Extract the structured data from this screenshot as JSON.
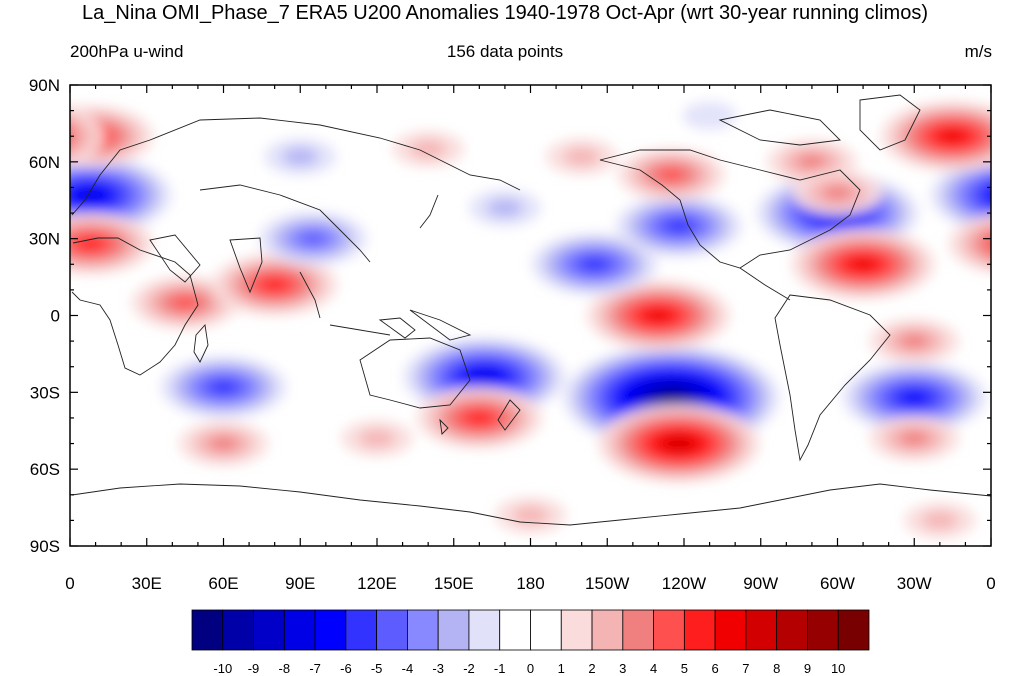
{
  "title": "La_Nina OMI_Phase_7 ERA5 U200 Anomalies 1940-1978 Oct-Apr (wrt 30-year running climos)",
  "subtitle_left": "200hPa u-wind",
  "subtitle_center": "156 data points",
  "subtitle_right": "m/s",
  "axes": {
    "lon_labels": [
      "0",
      "30E",
      "60E",
      "90E",
      "120E",
      "150E",
      "180",
      "150W",
      "120W",
      "90W",
      "60W",
      "30W",
      "0"
    ],
    "lat_labels": [
      "90N",
      "60N",
      "30N",
      "0",
      "30S",
      "60S",
      "90S"
    ]
  },
  "colorbar": {
    "labels": [
      "-10",
      "-9",
      "-8",
      "-7",
      "-6",
      "-5",
      "-4",
      "-3",
      "-2",
      "-1",
      "0",
      "1",
      "2",
      "3",
      "4",
      "5",
      "6",
      "7",
      "8",
      "9",
      "10"
    ],
    "colors": [
      "#000080",
      "#0000a8",
      "#0000c8",
      "#0000e6",
      "#0000ff",
      "#3333ff",
      "#5c5cff",
      "#8888ff",
      "#b4b4f5",
      "#e1e1fa",
      "#ffffff",
      "#ffffff",
      "#fadcdc",
      "#f5b4b4",
      "#f08080",
      "#ff5050",
      "#ff1e1e",
      "#f00000",
      "#d20000",
      "#b40000",
      "#960000",
      "#780000"
    ]
  },
  "map_data": {
    "type": "filled-contour",
    "variable": "U200 anomaly",
    "blobs": [
      {
        "lon": 8,
        "lat": 47,
        "value": -7
      },
      {
        "lon": 8,
        "lat": 28,
        "value": 5
      },
      {
        "lon": 8,
        "lat": 70,
        "value": 5
      },
      {
        "lon": 45,
        "lat": 5,
        "value": 4
      },
      {
        "lon": 80,
        "lat": 12,
        "value": 5
      },
      {
        "lon": 60,
        "lat": -28,
        "value": -5
      },
      {
        "lon": 95,
        "lat": 30,
        "value": -4
      },
      {
        "lon": 162,
        "lat": -24,
        "value": -7
      },
      {
        "lon": 235,
        "lat": -32,
        "value": -10
      },
      {
        "lon": 230,
        "lat": 0,
        "value": 6
      },
      {
        "lon": 205,
        "lat": 20,
        "value": -5
      },
      {
        "lon": 238,
        "lat": 35,
        "value": -5
      },
      {
        "lon": 300,
        "lat": 40,
        "value": -7
      },
      {
        "lon": 310,
        "lat": 20,
        "value": 6
      },
      {
        "lon": 238,
        "lat": -50,
        "value": 7
      },
      {
        "lon": 160,
        "lat": -40,
        "value": 5
      },
      {
        "lon": 330,
        "lat": -32,
        "value": -6
      },
      {
        "lon": 330,
        "lat": -48,
        "value": 3
      },
      {
        "lon": 345,
        "lat": 70,
        "value": 6
      },
      {
        "lon": 235,
        "lat": 55,
        "value": 4
      },
      {
        "lon": 290,
        "lat": 60,
        "value": 3
      },
      {
        "lon": 300,
        "lat": 48,
        "value": 3
      },
      {
        "lon": 120,
        "lat": -48,
        "value": 2
      },
      {
        "lon": 60,
        "lat": -50,
        "value": 3
      },
      {
        "lon": 90,
        "lat": 62,
        "value": -2
      },
      {
        "lon": 170,
        "lat": 42,
        "value": -2
      },
      {
        "lon": 250,
        "lat": 78,
        "value": -1
      },
      {
        "lon": 140,
        "lat": 65,
        "value": 2
      },
      {
        "lon": 200,
        "lat": 62,
        "value": 2
      },
      {
        "lon": 330,
        "lat": -10,
        "value": 3
      },
      {
        "lon": 340,
        "lat": -80,
        "value": 2
      },
      {
        "lon": 180,
        "lat": -78,
        "value": 2
      }
    ]
  }
}
